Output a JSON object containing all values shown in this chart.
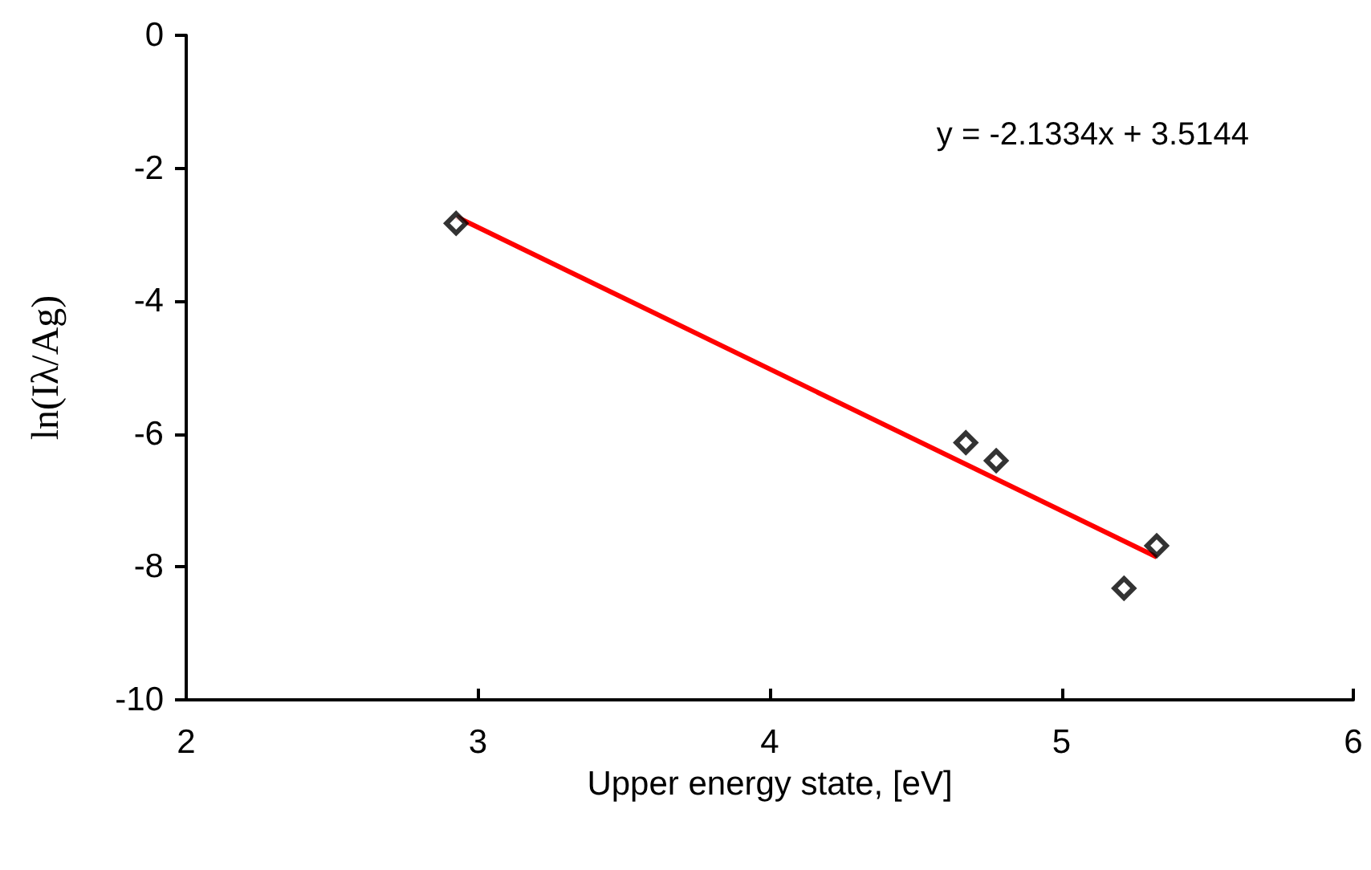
{
  "chart_data": {
    "type": "scatter",
    "xlabel": "Upper energy state, [eV]",
    "ylabel": "ln(Iλ/Ag)",
    "xlim": [
      2,
      6
    ],
    "xticks": [
      2,
      3,
      4,
      5,
      6
    ],
    "ylim": [
      -10,
      0
    ],
    "yticks": [
      -10,
      -8,
      -6,
      -4,
      -2,
      0
    ],
    "grid": false,
    "annotations": [
      "y = -2.1334x + 3.5144"
    ],
    "series": [
      {
        "marker": "diamond",
        "color": "#000000",
        "x": [
          2.925,
          4.672,
          4.776,
          5.214,
          5.326
        ],
        "values": [
          -2.83,
          -6.13,
          -6.4,
          -8.32,
          -7.68
        ]
      },
      {
        "type": "line",
        "marker": "none",
        "color": "#ff0000",
        "x": [
          2.925,
          5.326
        ],
        "values": [
          -2.73,
          -7.85
        ]
      }
    ]
  }
}
